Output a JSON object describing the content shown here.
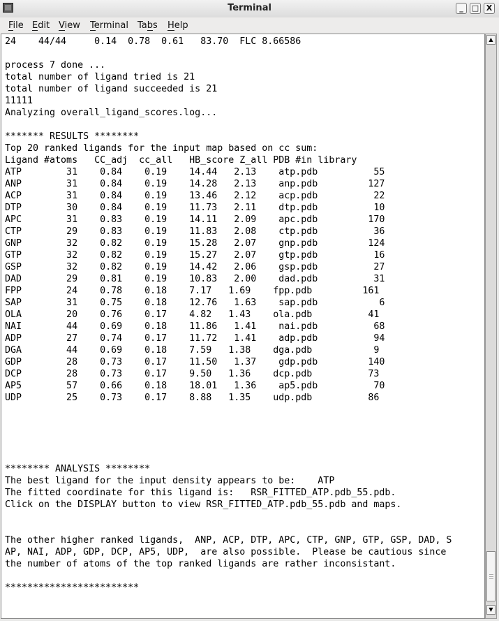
{
  "window": {
    "title": "Terminal"
  },
  "menu": [
    {
      "label": "File",
      "mnemonic": "F",
      "rest": "ile"
    },
    {
      "label": "Edit",
      "mnemonic": "E",
      "rest": "dit"
    },
    {
      "label": "View",
      "mnemonic": "V",
      "rest": "iew"
    },
    {
      "label": "Terminal",
      "mnemonic": "T",
      "rest": "erminal"
    },
    {
      "label": "Tabs",
      "pre": "Ta",
      "mnemonic": "b",
      "rest": "s"
    },
    {
      "label": "Help",
      "mnemonic": "H",
      "rest": "elp"
    }
  ],
  "icons": {
    "app": "terminal-icon",
    "minimize": "minimize-icon",
    "maximize": "maximize-icon",
    "close": "close-icon"
  },
  "terminal": {
    "lines": [
      "24    44/44     0.14  0.78  0.61   83.70  FLC 8.66586",
      "",
      "process 7 done ...",
      "total number of ligand tried is 21",
      "total number of ligand succeeded is 21",
      "11111",
      "Analyzing overall_ligand_scores.log...",
      "",
      "******* RESULTS ********",
      "Top 20 ranked ligands for the input map based on cc sum:",
      "Ligand #atoms   CC_adj  cc_all   HB_score Z_all PDB #in library",
      "ATP        31    0.84    0.19    14.44   2.13    atp.pdb          55",
      "ANP        31    0.84    0.19    14.28   2.13    anp.pdb         127",
      "ACP        31    0.84    0.19    13.46   2.12    acp.pdb          22",
      "DTP        30    0.84    0.19    11.73   2.11    dtp.pdb          10",
      "APC        31    0.83    0.19    14.11   2.09    apc.pdb         170",
      "CTP        29    0.83    0.19    11.83   2.08    ctp.pdb          36",
      "GNP        32    0.82    0.19    15.28   2.07    gnp.pdb         124",
      "GTP        32    0.82    0.19    15.27   2.07    gtp.pdb          16",
      "GSP        32    0.82    0.19    14.42   2.06    gsp.pdb          27",
      "DAD        29    0.81    0.19    10.83   2.00    dad.pdb          31",
      "FPP        24    0.78    0.18    7.17   1.69    fpp.pdb         161",
      "SAP        31    0.75    0.18    12.76   1.63    sap.pdb           6",
      "OLA        20    0.76    0.17    4.82   1.43    ola.pdb          41",
      "NAI        44    0.69    0.18    11.86   1.41    nai.pdb          68",
      "ADP        27    0.74    0.17    11.72   1.41    adp.pdb          94",
      "DGA        44    0.69    0.18    7.59   1.38    dga.pdb           9",
      "GDP        28    0.73    0.17    11.50   1.37    gdp.pdb         140",
      "DCP        28    0.73    0.17    9.50   1.36    dcp.pdb          73",
      "AP5        57    0.66    0.18    18.01   1.36    ap5.pdb          70",
      "UDP        25    0.73    0.17    8.88   1.35    udp.pdb          86",
      "",
      "",
      "",
      "",
      "",
      "******** ANALYSIS ********",
      "The best ligand for the input density appears to be:    ATP",
      "The fitted coordinate for this ligand is:   RSR_FITTED_ATP.pdb_55.pdb.",
      "Click on the DISPLAY button to view RSR_FITTED_ATP.pdb_55.pdb and maps.",
      "",
      "",
      "The other higher ranked ligands,  ANP, ACP, DTP, APC, CTP, GNP, GTP, GSP, DAD, S",
      "AP, NAI, ADP, GDP, DCP, AP5, UDP,  are also possible.  Please be cautious since",
      "the number of atoms of the top ranked ligands are rather inconsistant.",
      "",
      "************************"
    ]
  }
}
